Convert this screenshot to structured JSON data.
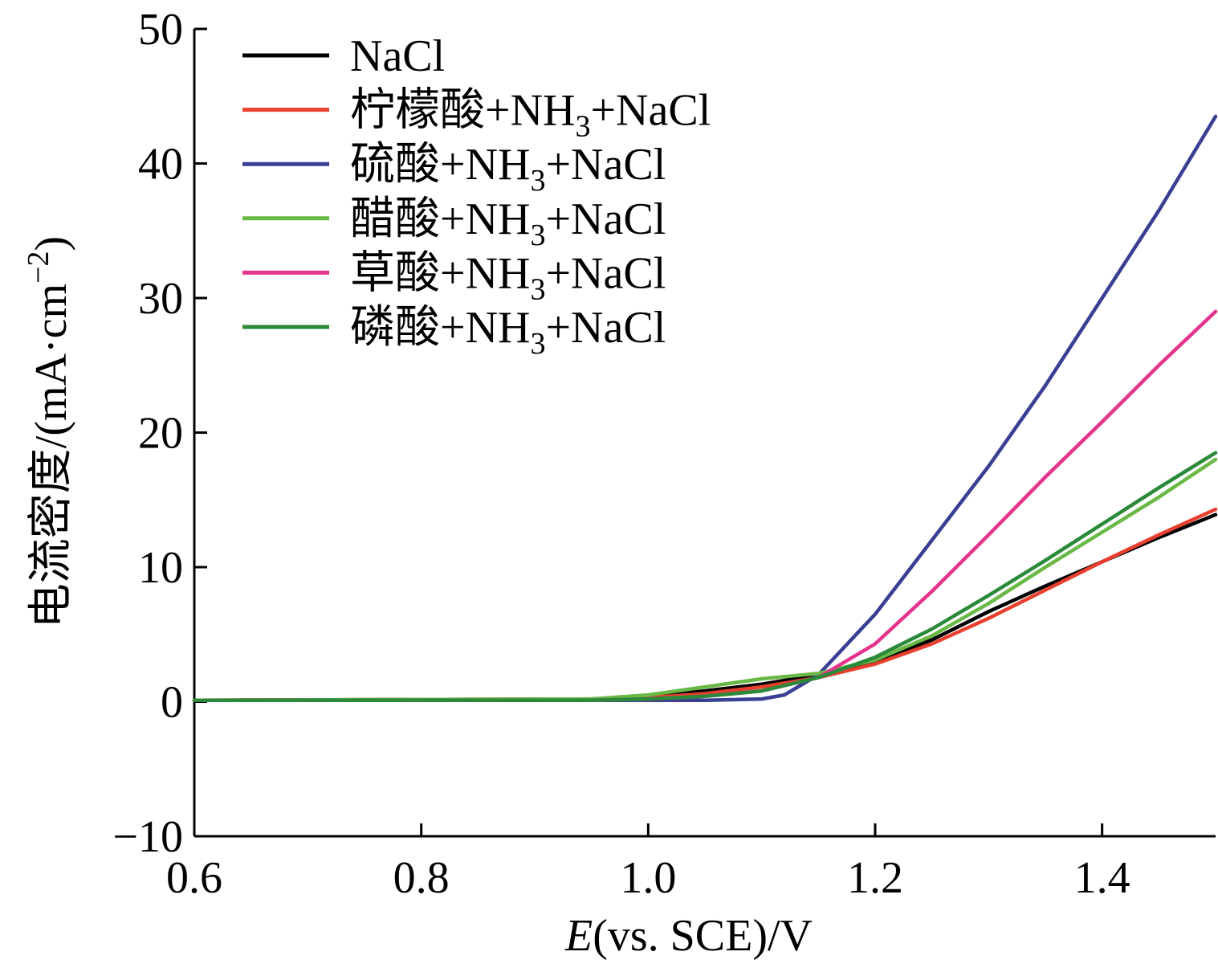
{
  "chart_data": {
    "type": "line",
    "title": "",
    "xlabel": {
      "italic": "E",
      "rest": "(vs. SCE)/V"
    },
    "ylabel": "电流密度/(mA·cm",
    "ylabel_sup": "−2",
    "ylabel_close": ")",
    "xlim": [
      0.6,
      1.5
    ],
    "ylim": [
      -10,
      50
    ],
    "xticks": [
      0.6,
      0.8,
      1.0,
      1.2,
      1.4
    ],
    "xtick_labels": [
      "0.6",
      "0.8",
      "1.0",
      "1.2",
      "1.4"
    ],
    "yticks": [
      -10,
      0,
      10,
      20,
      30,
      40,
      50
    ],
    "ytick_labels": [
      "−10",
      "0",
      "10",
      "20",
      "30",
      "40",
      "50"
    ],
    "grid": false,
    "legend_position": "top-left",
    "series": [
      {
        "name": "NaCl",
        "legend": {
          "prefix": "NaCl",
          "sub": "",
          "suffix": ""
        },
        "color": "#000000",
        "x": [
          0.6,
          0.95,
          1.0,
          1.05,
          1.1,
          1.15,
          1.2,
          1.25,
          1.3,
          1.35,
          1.4,
          1.45,
          1.5
        ],
        "y": [
          0.1,
          0.2,
          0.4,
          0.8,
          1.3,
          2.0,
          3.0,
          4.6,
          6.7,
          8.6,
          10.4,
          12.2,
          13.9
        ]
      },
      {
        "name": "柠檬酸+NH3+NaCl",
        "legend": {
          "prefix": "柠檬酸+NH",
          "sub": "3",
          "suffix": "+NaCl"
        },
        "color": "#e8402f",
        "x": [
          0.6,
          0.95,
          1.0,
          1.05,
          1.1,
          1.15,
          1.2,
          1.25,
          1.3,
          1.35,
          1.4,
          1.45,
          1.5
        ],
        "y": [
          0.1,
          0.2,
          0.3,
          0.6,
          1.1,
          1.8,
          2.8,
          4.3,
          6.2,
          8.3,
          10.4,
          12.4,
          14.3
        ]
      },
      {
        "name": "硫酸+NH3+NaCl",
        "legend": {
          "prefix": "硫酸+NH",
          "sub": "3",
          "suffix": "+NaCl"
        },
        "color": "#3a3f94",
        "x": [
          0.6,
          0.95,
          1.0,
          1.05,
          1.1,
          1.12,
          1.15,
          1.2,
          1.25,
          1.3,
          1.35,
          1.4,
          1.45,
          1.5
        ],
        "y": [
          0.1,
          0.1,
          0.1,
          0.1,
          0.2,
          0.5,
          2.0,
          6.5,
          12.0,
          17.5,
          23.5,
          30.0,
          36.5,
          43.5
        ]
      },
      {
        "name": "醋酸+NH3+NaCl",
        "legend": {
          "prefix": "醋酸+NH",
          "sub": "3",
          "suffix": "+NaCl"
        },
        "color": "#6ab845",
        "x": [
          0.6,
          0.95,
          1.0,
          1.05,
          1.1,
          1.15,
          1.2,
          1.25,
          1.3,
          1.35,
          1.4,
          1.45,
          1.5
        ],
        "y": [
          0.1,
          0.2,
          0.5,
          1.1,
          1.7,
          2.1,
          3.1,
          4.9,
          7.3,
          10.0,
          12.6,
          15.2,
          18.0
        ]
      },
      {
        "name": "草酸+NH3+NaCl",
        "legend": {
          "prefix": "草酸+NH",
          "sub": "3",
          "suffix": "+NaCl"
        },
        "color": "#e6338c",
        "x": [
          0.6,
          0.95,
          1.0,
          1.05,
          1.1,
          1.15,
          1.2,
          1.25,
          1.3,
          1.35,
          1.4,
          1.45,
          1.5
        ],
        "y": [
          0.1,
          0.1,
          0.2,
          0.4,
          0.8,
          1.8,
          4.3,
          8.2,
          12.4,
          16.7,
          20.8,
          25.0,
          29.0
        ]
      },
      {
        "name": "磷酸+NH3+NaCl",
        "legend": {
          "prefix": "磷酸+NH",
          "sub": "3",
          "suffix": "+NaCl"
        },
        "color": "#2a8a3a",
        "x": [
          0.6,
          0.95,
          1.0,
          1.05,
          1.1,
          1.15,
          1.2,
          1.25,
          1.3,
          1.35,
          1.4,
          1.45,
          1.5
        ],
        "y": [
          0.1,
          0.1,
          0.2,
          0.4,
          0.8,
          1.8,
          3.3,
          5.4,
          7.9,
          10.5,
          13.2,
          15.9,
          18.5
        ]
      }
    ]
  }
}
